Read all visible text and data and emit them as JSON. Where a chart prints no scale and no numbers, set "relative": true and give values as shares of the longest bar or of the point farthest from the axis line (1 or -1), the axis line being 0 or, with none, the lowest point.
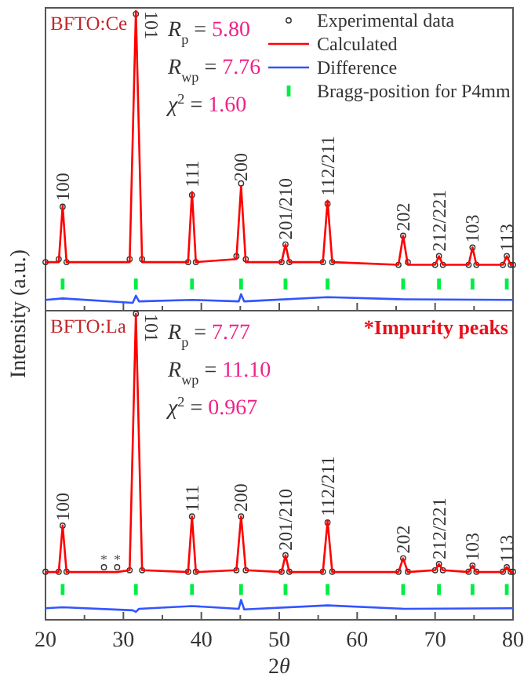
{
  "chart_data": [
    {
      "type": "line",
      "title": "BFTO:Ce",
      "ylabel": "Intensity (a.u.)",
      "relative": true,
      "legend": "top right",
      "tick_labels": false,
      "grid": false,
      "xlim": [
        20,
        80
      ],
      "xticks": [
        20,
        {
          "value": 25,
          "label": null
        },
        30,
        {
          "value": 35,
          "label": null
        },
        40,
        {
          "value": 45,
          "label": null
        },
        50,
        {
          "value": 55,
          "label": null
        },
        60,
        {
          "value": 65,
          "label": null
        },
        70,
        {
          "value": 75,
          "label": null
        },
        80
      ],
      "x": [
        20,
        21.7,
        22.2,
        22.7,
        30.8,
        31.6,
        32.4,
        38.3,
        38.8,
        39.3,
        44.5,
        45.1,
        45.7,
        50.3,
        50.8,
        51.3,
        55.6,
        56.2,
        56.8,
        65.3,
        65.9,
        66.5,
        70.0,
        70.5,
        71.0,
        74.3,
        74.8,
        75.3,
        78.7,
        79.2,
        79.7,
        80
      ],
      "series": [
        {
          "name": "Experimental data",
          "type": "scatter",
          "marker": "circle",
          "color": "#333333",
          "values": [
            0.162,
            0.172,
            0.347,
            0.162,
            0.172,
            0.99,
            0.172,
            0.162,
            0.386,
            0.162,
            0.182,
            0.425,
            0.172,
            0.162,
            0.221,
            0.162,
            0.162,
            0.357,
            0.162,
            0.153,
            0.25,
            0.162,
            0.153,
            0.182,
            0.153,
            0.153,
            0.211,
            0.153,
            0.153,
            0.182,
            0.153,
            0.153
          ]
        },
        {
          "name": "Calculated",
          "marker": "none",
          "color": "#ff0000",
          "values": [
            0.162,
            0.162,
            0.35,
            0.162,
            0.162,
            1,
            0.162,
            0.162,
            0.396,
            0.162,
            0.172,
            0.416,
            0.162,
            0.162,
            0.221,
            0.162,
            0.162,
            0.367,
            0.162,
            0.153,
            0.25,
            0.153,
            0.153,
            0.182,
            0.153,
            0.153,
            0.211,
            0.153,
            0.153,
            0.182,
            0.153,
            0.153
          ]
        },
        {
          "name": "Difference",
          "marker": "none",
          "color": "#3355ff",
          "x": [
            20,
            22.2,
            31.2,
            31.6,
            32,
            38.8,
            44.8,
            45.1,
            45.5,
            56.2,
            66,
            80
          ],
          "values": [
            0.036,
            0.041,
            0.026,
            0.05,
            0.031,
            0.036,
            0.031,
            0.055,
            0.031,
            0.045,
            0.038,
            0.036
          ]
        },
        {
          "name": "Bragg-position for P4mm",
          "type": "scatter",
          "marker": "square",
          "color": "#00ee44",
          "x": [
            22.2,
            31.6,
            38.8,
            45.1,
            50.8,
            56.2,
            65.9,
            70.5,
            74.8,
            79.2
          ],
          "values": [
            0.089,
            0.089,
            0.089,
            0.089,
            0.089,
            0.089,
            0.089,
            0.089,
            0.089,
            0.089
          ]
        }
      ],
      "annotations": [
        "R$_{p}$ = 5.80",
        "R$_{wp}$ = 7.76",
        "χ$^{2}$ = 1.60",
        {
          "text": "100",
          "x": 22.2,
          "y": 0.35
        },
        {
          "text": "101",
          "x": 31.6,
          "y": 1
        },
        {
          "text": "111",
          "x": 38.8,
          "y": 0.396
        },
        {
          "text": "200",
          "x": 45.1,
          "y": 0.416
        },
        {
          "text": "201/210",
          "x": 50.8,
          "y": 0.221
        },
        {
          "text": "112/211",
          "x": 56.2,
          "y": 0.367
        },
        {
          "text": "202",
          "x": 65.9,
          "y": 0.25
        },
        {
          "text": "212/221",
          "x": 70.5,
          "y": 0.182
        },
        {
          "text": "103",
          "x": 74.8,
          "y": 0.211
        },
        {
          "text": "113",
          "x": 79.2,
          "y": 0.182
        }
      ]
    },
    {
      "type": "line",
      "title": "BFTO:La",
      "xlabel": "2θ",
      "relative": true,
      "tick_labels": "x",
      "grid": false,
      "xlim": [
        20,
        80
      ],
      "xticks": [
        20,
        {
          "value": 25,
          "label": null
        },
        30,
        {
          "value": 35,
          "label": null
        },
        40,
        {
          "value": 45,
          "label": null
        },
        50,
        {
          "value": 55,
          "label": null
        },
        60,
        {
          "value": 65,
          "label": null
        },
        70,
        {
          "value": 75,
          "label": null
        },
        80
      ],
      "x": [
        20,
        21.7,
        22.2,
        22.7,
        27.5,
        29.2,
        30.8,
        31.6,
        32.4,
        38.3,
        38.8,
        39.3,
        44.5,
        45.1,
        45.7,
        50.3,
        50.8,
        51.3,
        55.6,
        56.2,
        56.8,
        65.3,
        65.9,
        66.5,
        70.0,
        70.5,
        71.0,
        74.3,
        74.8,
        75.3,
        78.7,
        79.2,
        79.7,
        80
      ],
      "series": [
        {
          "type": "scatter",
          "marker": "circle",
          "color": "#333333",
          "values": [
            0.157,
            0.157,
            0.308,
            0.157,
            0.172,
            0.172,
            0.162,
            1,
            0.162,
            0.157,
            0.338,
            0.157,
            0.162,
            0.338,
            0.162,
            0.157,
            0.211,
            0.157,
            0.157,
            0.318,
            0.157,
            0.157,
            0.201,
            0.157,
            0.162,
            0.182,
            0.162,
            0.157,
            0.177,
            0.157,
            0.157,
            0.172,
            0.157,
            0.157
          ]
        },
        {
          "marker": "none",
          "color": "#ff0000",
          "values": [
            0.156,
            0.156,
            0.308,
            0.156,
            0.156,
            0.156,
            0.162,
            1,
            0.162,
            0.156,
            0.338,
            0.156,
            0.162,
            0.338,
            0.162,
            0.156,
            0.211,
            0.156,
            0.156,
            0.323,
            0.156,
            0.156,
            0.201,
            0.156,
            0.162,
            0.182,
            0.162,
            0.156,
            0.177,
            0.156,
            0.156,
            0.172,
            0.156,
            0.156
          ]
        },
        {
          "marker": "none",
          "color": "#3355ff",
          "x": [
            20,
            22.2,
            31.2,
            31.6,
            32,
            38.8,
            44.8,
            45.1,
            45.5,
            56.2,
            66,
            80
          ],
          "values": [
            0.038,
            0.041,
            0.031,
            0.026,
            0.036,
            0.045,
            0.036,
            0.065,
            0.034,
            0.047,
            0.036,
            0.038
          ]
        },
        {
          "type": "scatter",
          "marker": "square",
          "color": "#00ee44",
          "x": [
            22.2,
            31.6,
            38.8,
            45.1,
            50.8,
            56.2,
            65.9,
            70.5,
            74.8,
            79.2
          ],
          "values": [
            0.099,
            0.099,
            0.099,
            0.099,
            0.099,
            0.099,
            0.099,
            0.099,
            0.099,
            0.099
          ]
        }
      ],
      "annotations": [
        "R$_{p}$ = 7.77",
        "R$_{wp}$ = 11.10",
        "χ$^{2}$ = 0.967",
        "*Impurity peaks",
        {
          "text": "*",
          "x": 27.5,
          "y": 0.172
        },
        {
          "text": "*",
          "x": 29.2,
          "y": 0.172
        },
        {
          "text": "100",
          "x": 22.2,
          "y": 0.308
        },
        {
          "text": "101",
          "x": 31.6,
          "y": 1
        },
        {
          "text": "111",
          "x": 38.8,
          "y": 0.338
        },
        {
          "text": "200",
          "x": 45.1,
          "y": 0.338
        },
        {
          "text": "201/210",
          "x": 50.8,
          "y": 0.211
        },
        {
          "text": "112/211",
          "x": 56.2,
          "y": 0.323
        },
        {
          "text": "202",
          "x": 65.9,
          "y": 0.201
        },
        {
          "text": "212/221",
          "x": 70.5,
          "y": 0.182
        },
        {
          "text": "103",
          "x": 74.8,
          "y": 0.177
        },
        {
          "text": "113",
          "x": 79.2,
          "y": 0.172
        }
      ]
    }
  ]
}
